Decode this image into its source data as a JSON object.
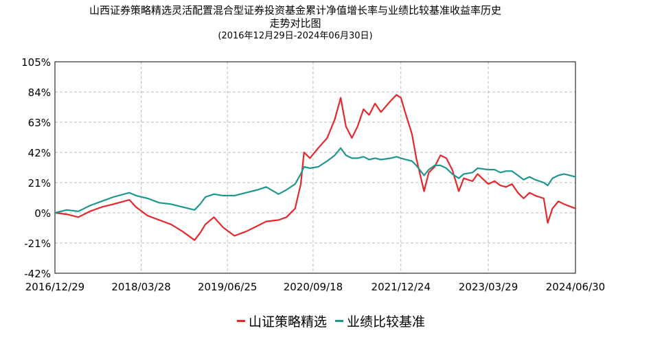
{
  "chart_data": {
    "type": "line",
    "title_line1": "山西证券策略精选灵活配置混合型证券投资基金累计净值增长率与业绩比较基准收益率历史",
    "title_line2": "走势对比图",
    "subtitle": "(2016年12月29日-2024年06月30日)",
    "ylim": [
      -42,
      105
    ],
    "yticks": [
      "105%",
      "84%",
      "63%",
      "42%",
      "21%",
      "0%",
      "-21%",
      "-42%"
    ],
    "ytick_values": [
      105,
      84,
      63,
      42,
      21,
      0,
      -21,
      -42
    ],
    "xticks": [
      "2016/12/29",
      "2018/03/28",
      "2019/06/25",
      "2020/09/18",
      "2021/12/24",
      "2023/03/29",
      "2024/06/30"
    ],
    "x_start": "2016/12/29",
    "x_end": "2024/06/30",
    "grid": true,
    "legend_position": "bottom",
    "series": [
      {
        "name": "山证策略精选",
        "color": "#e8262a",
        "points": [
          [
            "2016/12/29",
            0
          ],
          [
            "2017/03/01",
            -1
          ],
          [
            "2017/05/01",
            -3
          ],
          [
            "2017/07/01",
            1
          ],
          [
            "2017/09/01",
            4
          ],
          [
            "2017/11/01",
            6
          ],
          [
            "2018/01/25",
            9
          ],
          [
            "2018/03/01",
            4
          ],
          [
            "2018/05/01",
            -2
          ],
          [
            "2018/07/01",
            -5
          ],
          [
            "2018/09/01",
            -8
          ],
          [
            "2018/11/01",
            -13
          ],
          [
            "2019/01/03",
            -19
          ],
          [
            "2019/02/01",
            -14
          ],
          [
            "2019/03/01",
            -8
          ],
          [
            "2019/04/15",
            -3
          ],
          [
            "2019/06/01",
            -10
          ],
          [
            "2019/08/01",
            -16
          ],
          [
            "2019/10/01",
            -13
          ],
          [
            "2019/12/01",
            -9
          ],
          [
            "2020/01/15",
            -6
          ],
          [
            "2020/03/20",
            -5
          ],
          [
            "2020/05/01",
            -3
          ],
          [
            "2020/06/15",
            3
          ],
          [
            "2020/07/15",
            20
          ],
          [
            "2020/08/01",
            42
          ],
          [
            "2020/09/01",
            38
          ],
          [
            "2020/10/15",
            45
          ],
          [
            "2020/12/01",
            52
          ],
          [
            "2021/01/10",
            65
          ],
          [
            "2021/02/10",
            80
          ],
          [
            "2021/03/10",
            60
          ],
          [
            "2021/04/10",
            52
          ],
          [
            "2021/05/10",
            60
          ],
          [
            "2021/06/10",
            72
          ],
          [
            "2021/07/10",
            68
          ],
          [
            "2021/08/10",
            76
          ],
          [
            "2021/09/10",
            70
          ],
          [
            "2021/11/01",
            78
          ],
          [
            "2021/12/01",
            82
          ],
          [
            "2021/12/24",
            80
          ],
          [
            "2022/01/20",
            68
          ],
          [
            "2022/02/20",
            55
          ],
          [
            "2022/03/15",
            38
          ],
          [
            "2022/04/25",
            15
          ],
          [
            "2022/05/20",
            28
          ],
          [
            "2022/06/20",
            32
          ],
          [
            "2022/07/20",
            40
          ],
          [
            "2022/08/20",
            38
          ],
          [
            "2022/09/20",
            30
          ],
          [
            "2022/10/25",
            15
          ],
          [
            "2022/11/20",
            24
          ],
          [
            "2023/01/05",
            22
          ],
          [
            "2023/02/01",
            27
          ],
          [
            "2023/03/29",
            20
          ],
          [
            "2023/05/01",
            22
          ],
          [
            "2023/06/01",
            19
          ],
          [
            "2023/07/01",
            18
          ],
          [
            "2023/08/01",
            20
          ],
          [
            "2023/09/01",
            14
          ],
          [
            "2023/10/01",
            10
          ],
          [
            "2023/11/01",
            14
          ],
          [
            "2023/12/01",
            12
          ],
          [
            "2024/01/15",
            10
          ],
          [
            "2024/02/05",
            -7
          ],
          [
            "2024/03/01",
            3
          ],
          [
            "2024/04/01",
            8
          ],
          [
            "2024/05/01",
            6
          ],
          [
            "2024/06/30",
            3
          ]
        ]
      },
      {
        "name": "业绩比较基准",
        "color": "#1e9690",
        "points": [
          [
            "2016/12/29",
            0
          ],
          [
            "2017/03/01",
            2
          ],
          [
            "2017/05/01",
            1
          ],
          [
            "2017/07/01",
            5
          ],
          [
            "2017/09/01",
            8
          ],
          [
            "2017/11/01",
            11
          ],
          [
            "2018/01/25",
            14
          ],
          [
            "2018/03/01",
            12
          ],
          [
            "2018/05/01",
            10
          ],
          [
            "2018/07/01",
            7
          ],
          [
            "2018/09/01",
            6
          ],
          [
            "2018/11/01",
            4
          ],
          [
            "2019/01/03",
            2
          ],
          [
            "2019/02/01",
            6
          ],
          [
            "2019/03/01",
            11
          ],
          [
            "2019/04/15",
            13
          ],
          [
            "2019/06/01",
            12
          ],
          [
            "2019/08/01",
            12
          ],
          [
            "2019/10/01",
            14
          ],
          [
            "2019/12/01",
            16
          ],
          [
            "2020/01/15",
            18
          ],
          [
            "2020/03/20",
            13
          ],
          [
            "2020/05/01",
            16
          ],
          [
            "2020/06/15",
            20
          ],
          [
            "2020/07/15",
            27
          ],
          [
            "2020/08/01",
            32
          ],
          [
            "2020/09/01",
            31
          ],
          [
            "2020/10/15",
            32
          ],
          [
            "2020/12/01",
            36
          ],
          [
            "2021/01/10",
            40
          ],
          [
            "2021/02/10",
            45
          ],
          [
            "2021/03/10",
            40
          ],
          [
            "2021/04/10",
            38
          ],
          [
            "2021/05/10",
            38
          ],
          [
            "2021/06/10",
            39
          ],
          [
            "2021/07/10",
            37
          ],
          [
            "2021/08/10",
            38
          ],
          [
            "2021/09/10",
            37
          ],
          [
            "2021/11/01",
            38
          ],
          [
            "2021/12/01",
            39
          ],
          [
            "2021/12/24",
            38
          ],
          [
            "2022/01/20",
            37
          ],
          [
            "2022/02/20",
            36
          ],
          [
            "2022/03/15",
            33
          ],
          [
            "2022/04/25",
            26
          ],
          [
            "2022/05/20",
            30
          ],
          [
            "2022/06/20",
            33
          ],
          [
            "2022/07/20",
            33
          ],
          [
            "2022/08/20",
            31
          ],
          [
            "2022/09/20",
            27
          ],
          [
            "2022/10/25",
            24
          ],
          [
            "2022/11/20",
            27
          ],
          [
            "2023/01/05",
            28
          ],
          [
            "2023/02/01",
            31
          ],
          [
            "2023/03/29",
            30
          ],
          [
            "2023/05/01",
            30
          ],
          [
            "2023/06/01",
            28
          ],
          [
            "2023/07/01",
            29
          ],
          [
            "2023/08/01",
            29
          ],
          [
            "2023/09/01",
            26
          ],
          [
            "2023/10/01",
            23
          ],
          [
            "2023/11/01",
            25
          ],
          [
            "2023/12/01",
            23
          ],
          [
            "2024/01/15",
            21
          ],
          [
            "2024/02/05",
            19
          ],
          [
            "2024/03/01",
            24
          ],
          [
            "2024/04/01",
            26
          ],
          [
            "2024/05/01",
            27
          ],
          [
            "2024/06/30",
            25
          ]
        ]
      }
    ]
  }
}
